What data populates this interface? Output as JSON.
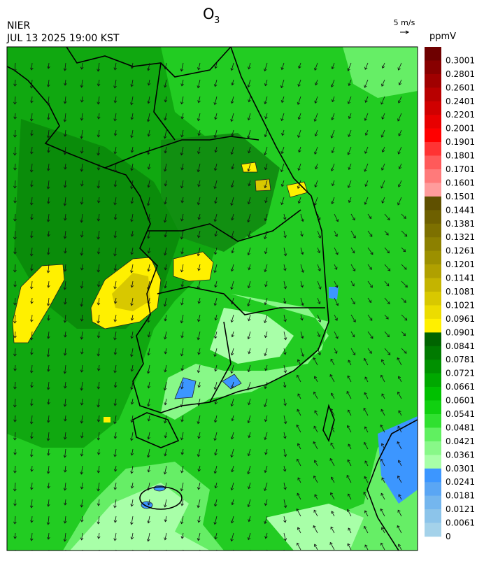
{
  "header": {
    "title": "O",
    "title_sub": "3",
    "agency": "NIER",
    "datetime": "JUL 13 2025 19:00 KST"
  },
  "wind_key": {
    "label": "5 m/s"
  },
  "colorbar": {
    "unit": "ppmV",
    "levels": [
      {
        "label": "0.3001",
        "color": "#6e0000"
      },
      {
        "label": "0.2801",
        "color": "#880000"
      },
      {
        "label": "0.2601",
        "color": "#a00000"
      },
      {
        "label": "0.2401",
        "color": "#b80000"
      },
      {
        "label": "0.2201",
        "color": "#d00000"
      },
      {
        "label": "0.2001",
        "color": "#e80000"
      },
      {
        "label": "0.1901",
        "color": "#ff0000"
      },
      {
        "label": "0.1801",
        "color": "#ff3333"
      },
      {
        "label": "0.1701",
        "color": "#ff5a5a"
      },
      {
        "label": "0.1601",
        "color": "#ff7a7a"
      },
      {
        "label": "0.1501",
        "color": "#ff9c9c"
      },
      {
        "label": "0.1441",
        "color": "#5f5000"
      },
      {
        "label": "0.1381",
        "color": "#6e6000"
      },
      {
        "label": "0.1321",
        "color": "#7d7000"
      },
      {
        "label": "0.1261",
        "color": "#8c8000"
      },
      {
        "label": "0.1201",
        "color": "#9c9000"
      },
      {
        "label": "0.1141",
        "color": "#b0a000"
      },
      {
        "label": "0.1081",
        "color": "#c4b400"
      },
      {
        "label": "0.1021",
        "color": "#d8c800"
      },
      {
        "label": "0.0961",
        "color": "#ecdc00"
      },
      {
        "label": "0.0901",
        "color": "#fff000"
      },
      {
        "label": "0.0841",
        "color": "#006400"
      },
      {
        "label": "0.0781",
        "color": "#007a00"
      },
      {
        "label": "0.0721",
        "color": "#009000"
      },
      {
        "label": "0.0661",
        "color": "#00a800"
      },
      {
        "label": "0.0601",
        "color": "#00c000"
      },
      {
        "label": "0.0541",
        "color": "#10d010"
      },
      {
        "label": "0.0481",
        "color": "#30e030"
      },
      {
        "label": "0.0421",
        "color": "#60f060"
      },
      {
        "label": "0.0361",
        "color": "#88f888"
      },
      {
        "label": "0.0301",
        "color": "#a8ffa8"
      },
      {
        "label": "0.0241",
        "color": "#3c96ff"
      },
      {
        "label": "0.0181",
        "color": "#5aa6f4"
      },
      {
        "label": "0.0121",
        "color": "#74b6ee"
      },
      {
        "label": "0.0061",
        "color": "#8cc4ea"
      },
      {
        "label": "0",
        "color": "#a4d2ea"
      }
    ]
  }
}
